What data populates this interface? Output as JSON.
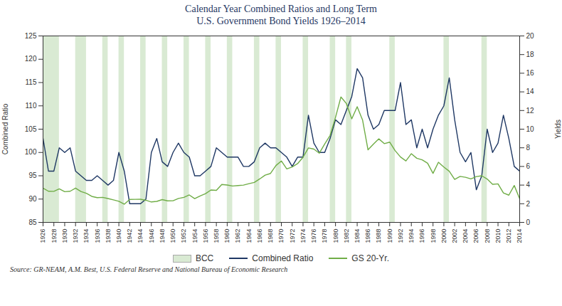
{
  "chart_data": {
    "type": "line",
    "title": "Calendar Year Combined Ratios and Long Term",
    "subtitle": "U.S. Government Bond Yields 1926–2014",
    "source": "Source: GR-NEAM, A.M. Best, U.S. Federal Reserve and National Bureau of Economic Research",
    "ylabel": "Combined Ratio",
    "y2label": "Yields",
    "x": [
      1926,
      1927,
      1928,
      1929,
      1930,
      1931,
      1932,
      1933,
      1934,
      1935,
      1936,
      1937,
      1938,
      1939,
      1940,
      1941,
      1942,
      1943,
      1944,
      1945,
      1946,
      1947,
      1948,
      1949,
      1950,
      1951,
      1952,
      1953,
      1954,
      1955,
      1956,
      1957,
      1958,
      1959,
      1960,
      1961,
      1962,
      1963,
      1964,
      1965,
      1966,
      1967,
      1968,
      1969,
      1970,
      1971,
      1972,
      1973,
      1974,
      1975,
      1976,
      1977,
      1978,
      1979,
      1980,
      1981,
      1982,
      1983,
      1984,
      1985,
      1986,
      1987,
      1988,
      1989,
      1990,
      1991,
      1992,
      1993,
      1994,
      1995,
      1996,
      1997,
      1998,
      1999,
      2000,
      2001,
      2002,
      2003,
      2004,
      2005,
      2006,
      2007,
      2008,
      2009,
      2010,
      2011,
      2012,
      2013,
      2014
    ],
    "xlim": [
      1926,
      2014
    ],
    "xticks": [
      1926,
      1928,
      1930,
      1932,
      1934,
      1936,
      1938,
      1940,
      1942,
      1944,
      1946,
      1948,
      1950,
      1952,
      1954,
      1956,
      1958,
      1960,
      1962,
      1964,
      1966,
      1968,
      1970,
      1972,
      1974,
      1976,
      1978,
      1980,
      1982,
      1984,
      1986,
      1988,
      1990,
      1992,
      1994,
      1996,
      1998,
      2000,
      2002,
      2004,
      2006,
      2008,
      2010,
      2012,
      2014
    ],
    "ylim": [
      85,
      125
    ],
    "yticks": [
      85,
      90,
      95,
      100,
      105,
      110,
      115,
      120,
      125
    ],
    "y2lim": [
      0,
      20
    ],
    "y2ticks": [
      0,
      2,
      4,
      6,
      8,
      10,
      12,
      14,
      16,
      18,
      20
    ],
    "grid": false,
    "legend": "bottom",
    "shaded_periods": {
      "name": "BCC",
      "color": "#d9ead3",
      "periods": [
        [
          1926,
          1929
        ],
        [
          1932,
          1934
        ],
        [
          1937,
          1938
        ],
        [
          1940,
          1941
        ],
        [
          1944,
          1945
        ],
        [
          1948,
          1949
        ],
        [
          1952,
          1953
        ],
        [
          1956,
          1957
        ],
        [
          1960,
          1961
        ],
        [
          1965,
          1966
        ],
        [
          1969,
          1970
        ],
        [
          1974,
          1975
        ],
        [
          1979,
          1980
        ],
        [
          1982,
          1983
        ],
        [
          1990,
          1991
        ],
        [
          2000,
          2001
        ],
        [
          2007,
          2008
        ]
      ]
    },
    "series": [
      {
        "name": "Combined Ratio",
        "color": "#1f3864",
        "values": [
          103,
          96,
          96,
          101,
          100,
          101,
          96,
          95,
          94,
          94,
          95,
          94,
          93,
          94,
          100,
          96,
          89,
          89,
          89,
          90,
          100,
          103,
          98,
          97,
          100,
          102,
          100,
          99,
          95,
          95,
          96,
          97,
          101,
          100,
          99,
          99,
          99,
          97,
          97,
          98,
          101,
          102,
          101,
          101,
          100,
          99,
          97,
          99,
          99,
          108,
          102,
          100,
          100,
          103,
          107,
          106,
          109,
          112,
          118,
          116,
          108,
          105,
          106,
          109,
          109,
          109,
          115,
          106,
          107,
          101,
          105,
          101,
          105,
          108,
          110,
          116,
          107,
          100,
          98,
          100,
          92,
          95,
          105,
          100,
          102,
          108,
          103,
          97,
          96
        ]
      },
      {
        "name": "GS 20-Yr.",
        "color": "#70ad47",
        "axis": "y2",
        "values": [
          3.68,
          3.34,
          3.33,
          3.6,
          3.29,
          3.34,
          3.68,
          3.31,
          3.12,
          2.79,
          2.65,
          2.68,
          2.56,
          2.41,
          2.26,
          1.95,
          2.46,
          2.47,
          2.48,
          2.37,
          2.19,
          2.25,
          2.44,
          2.31,
          2.32,
          2.57,
          2.68,
          2.94,
          2.55,
          2.84,
          3.08,
          3.47,
          3.43,
          4.07,
          4.01,
          3.9,
          3.95,
          4.0,
          4.15,
          4.28,
          4.66,
          5.07,
          5.25,
          6.1,
          6.59,
          5.74,
          5.95,
          6.3,
          6.99,
          7.99,
          7.86,
          7.42,
          8.41,
          9.33,
          11.27,
          13.45,
          12.76,
          11.11,
          12.41,
          10.97,
          7.78,
          8.39,
          8.96,
          8.45,
          8.61,
          7.7,
          7.01,
          6.59,
          7.37,
          6.88,
          6.71,
          6.35,
          5.26,
          6.45,
          5.94,
          5.49,
          4.61,
          4.93,
          4.84,
          4.66,
          4.91,
          5.0,
          4.65,
          4.08,
          4.13,
          3.16,
          2.92,
          3.96,
          2.54
        ]
      }
    ]
  }
}
